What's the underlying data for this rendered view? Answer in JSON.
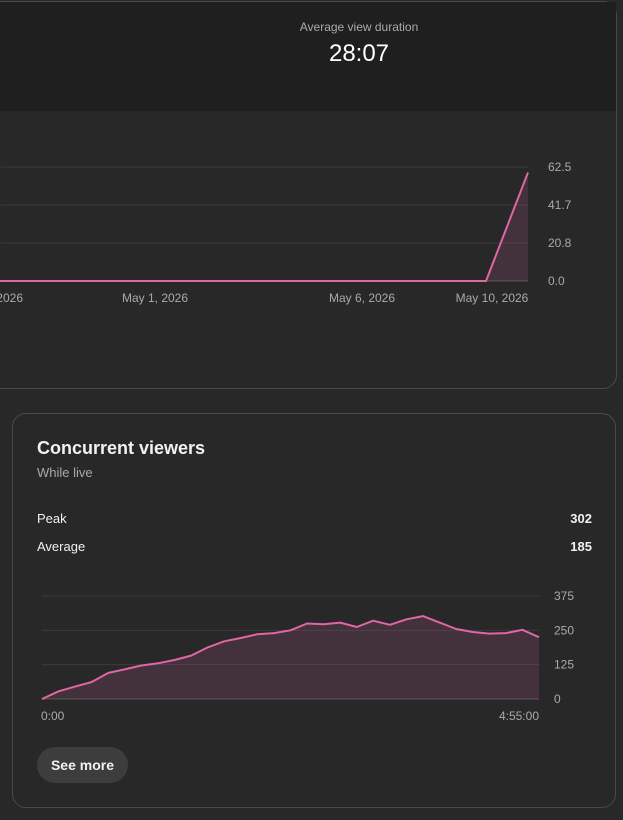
{
  "header_metric": {
    "label": "Average view duration",
    "value": "28:07"
  },
  "views_chart": {
    "x_labels": [
      "2026",
      "May 1, 2026",
      "May 6, 2026",
      "May 10, 2026"
    ],
    "y_labels": [
      "62.5",
      "41.7",
      "20.8",
      "0.0"
    ],
    "line_color": "#e066a6"
  },
  "concurrent_viewers": {
    "title": "Concurrent viewers",
    "subtitle": "While live",
    "stats": [
      {
        "label": "Peak",
        "value": "302"
      },
      {
        "label": "Average",
        "value": "185"
      }
    ],
    "x_labels": [
      "0:00",
      "4:55:00"
    ],
    "y_labels": [
      "375",
      "250",
      "125",
      "0"
    ],
    "line_color": "#e066a6",
    "see_more_label": "See more"
  },
  "chart_data": [
    {
      "type": "area",
      "title": "",
      "xlabel": "",
      "ylabel": "",
      "x_ticks": [
        "2026",
        "May 1, 2026",
        "May 6, 2026",
        "May 10, 2026"
      ],
      "ylim": [
        0,
        62.5
      ],
      "y_ticks": [
        0,
        20.8,
        41.7,
        62.5
      ],
      "series": [
        {
          "x": [
            "2026-04-27",
            "May 1, 2026",
            "May 6, 2026",
            "2026-05-09",
            "May 10, 2026"
          ],
          "values": [
            0,
            0,
            0,
            0,
            59.5
          ]
        }
      ],
      "grid": true
    },
    {
      "type": "area",
      "title": "Concurrent viewers",
      "xlabel": "",
      "ylabel": "",
      "xlim": [
        "0:00",
        "4:55:00"
      ],
      "ylim": [
        0,
        375
      ],
      "y_ticks": [
        0,
        125,
        250,
        375
      ],
      "series": [
        {
          "x": [
            "0:00",
            "0:10",
            "0:20",
            "0:30",
            "0:40",
            "0:50",
            "1:00",
            "1:10",
            "1:20",
            "1:30",
            "1:40",
            "1:50",
            "2:00",
            "2:10",
            "2:20",
            "2:30",
            "2:40",
            "2:50",
            "3:00",
            "3:10",
            "3:20",
            "3:30",
            "3:40",
            "3:50",
            "4:00",
            "4:10",
            "4:20",
            "4:30",
            "4:40",
            "4:50",
            "4:55:00"
          ],
          "values": [
            0,
            28,
            45,
            62,
            95,
            108,
            122,
            130,
            142,
            158,
            188,
            210,
            222,
            236,
            240,
            250,
            275,
            272,
            278,
            262,
            285,
            270,
            290,
            302,
            278,
            255,
            244,
            238,
            240,
            252,
            225
          ]
        }
      ],
      "grid": true
    }
  ]
}
